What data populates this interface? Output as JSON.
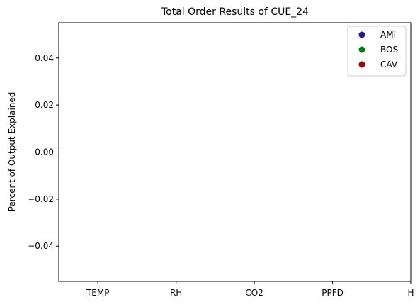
{
  "chart_data": {
    "type": "scatter",
    "title": "Total Order Results of CUE_24",
    "xlabel": "",
    "ylabel": "Percent of Output Explained",
    "categories": [
      "TEMP",
      "RH",
      "CO2",
      "PPFD",
      "H"
    ],
    "xlim": [
      -0.5,
      4.0
    ],
    "ylim": [
      -0.055,
      0.055
    ],
    "yticks": [
      -0.04,
      -0.02,
      0.0,
      0.02,
      0.04
    ],
    "ytick_labels": [
      "−0.04",
      "−0.02",
      "0.00",
      "0.02",
      "0.04"
    ],
    "grid": false,
    "legend_position": "top-right",
    "series": [
      {
        "name": "AMI",
        "color": "#2a1a8c",
        "values": []
      },
      {
        "name": "BOS",
        "color": "#0a7a10",
        "values": []
      },
      {
        "name": "CAV",
        "color": "#8b0f0f",
        "values": []
      }
    ]
  }
}
